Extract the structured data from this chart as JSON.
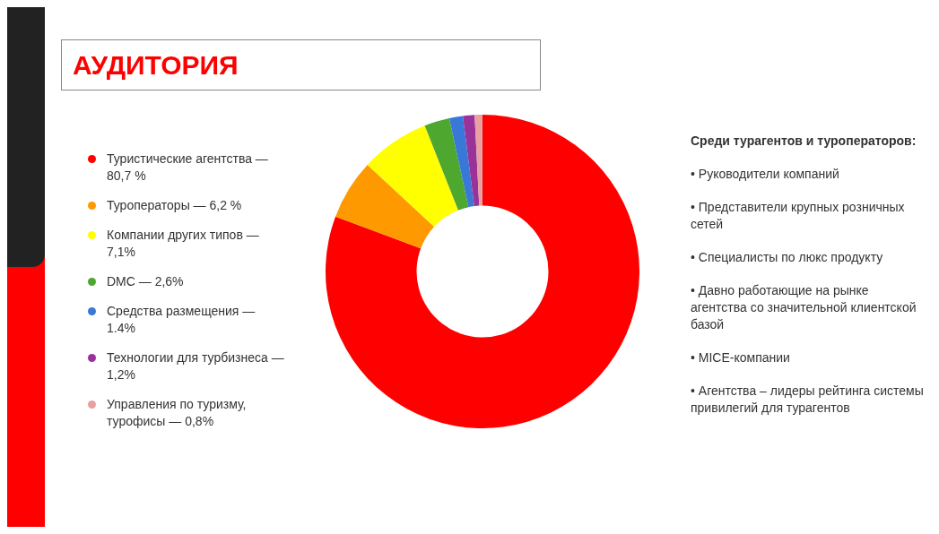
{
  "chart_data": {
    "type": "donut",
    "title": "АУДИТОРИЯ",
    "categories": [
      "Туристические агентства — 80,7 %",
      "Туроператоры — 6,2 %",
      "Компании других типов — 7,1%",
      "DMC — 2,6%",
      "Средства размещения — 1.4%",
      "Технологии для турбизнеса — 1,2%",
      "Управления по туризму, турофисы — 0,8%"
    ],
    "values": [
      80.7,
      6.2,
      7.1,
      2.6,
      1.4,
      1.2,
      0.8
    ],
    "colors": [
      "#ff0000",
      "#ff9900",
      "#ffff00",
      "#4ea72e",
      "#3a78d8",
      "#993399",
      "#e8a0a0"
    ],
    "legend": "left",
    "annotations": [
      "Среди турагентов и туроператоров:",
      "• Руководители компаний",
      "• Представители крупных розничных сетей",
      "• Специалисты по люкс продукту",
      "• Давно работающие на рынке агентства со значительной клиентской базой",
      "• MICE-компании",
      "• Агентства – лидеры рейтинга системы привилегий для турагентов"
    ]
  }
}
